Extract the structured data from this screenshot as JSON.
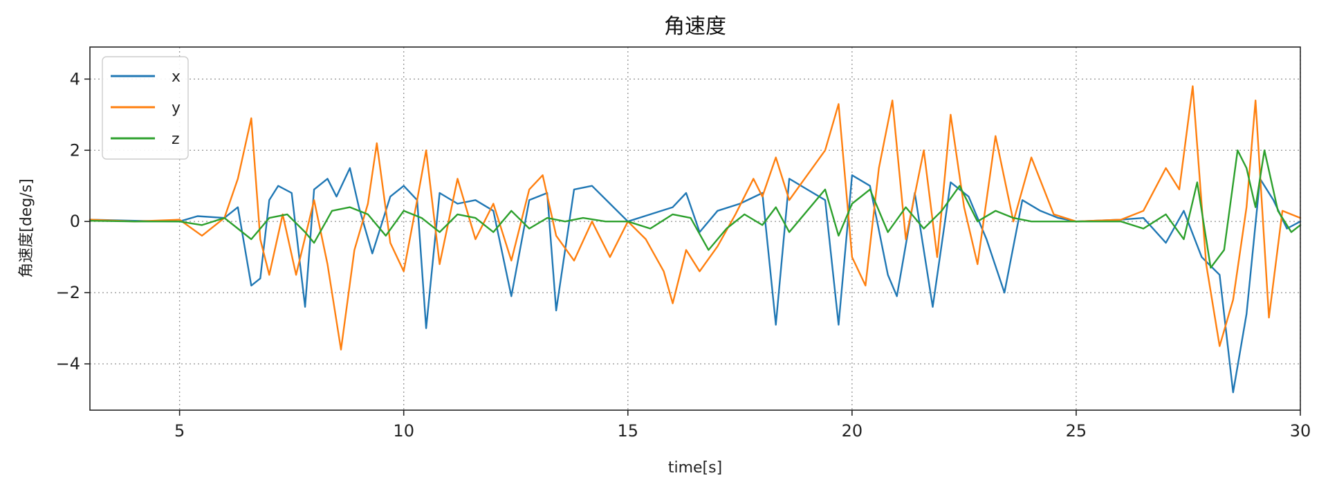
{
  "chart_data": {
    "type": "line",
    "title": "角速度",
    "xlabel": "time[s]",
    "ylabel": "角速度[deg/s]",
    "xlim": [
      3,
      30
    ],
    "ylim": [
      -5.3,
      4.9
    ],
    "x_ticks": [
      5,
      10,
      15,
      20,
      25,
      30
    ],
    "y_ticks": [
      4,
      2,
      0,
      -2,
      -4
    ],
    "y_tick_labels": [
      "4",
      "2",
      "0",
      "−2",
      "−4"
    ],
    "grid": true,
    "legend_position": "top-left",
    "series": [
      {
        "name": "x",
        "color": "#1f77b4",
        "points": [
          [
            3,
            0.05
          ],
          [
            4,
            0.02
          ],
          [
            5,
            0.0
          ],
          [
            5.4,
            0.15
          ],
          [
            6,
            0.1
          ],
          [
            6.3,
            0.4
          ],
          [
            6.6,
            -1.8
          ],
          [
            6.8,
            -1.6
          ],
          [
            7.0,
            0.6
          ],
          [
            7.2,
            1.0
          ],
          [
            7.5,
            0.8
          ],
          [
            7.8,
            -2.4
          ],
          [
            8.0,
            0.9
          ],
          [
            8.3,
            1.2
          ],
          [
            8.5,
            0.7
          ],
          [
            8.8,
            1.5
          ],
          [
            9.0,
            0.4
          ],
          [
            9.3,
            -0.9
          ],
          [
            9.7,
            0.7
          ],
          [
            10.0,
            1.0
          ],
          [
            10.3,
            0.6
          ],
          [
            10.5,
            -3.0
          ],
          [
            10.8,
            0.8
          ],
          [
            11.2,
            0.5
          ],
          [
            11.6,
            0.6
          ],
          [
            12.0,
            0.3
          ],
          [
            12.4,
            -2.1
          ],
          [
            12.8,
            0.6
          ],
          [
            13.2,
            0.8
          ],
          [
            13.4,
            -2.5
          ],
          [
            13.8,
            0.9
          ],
          [
            14.2,
            1.0
          ],
          [
            14.6,
            0.5
          ],
          [
            15.0,
            0.0
          ],
          [
            15.5,
            0.2
          ],
          [
            16.0,
            0.4
          ],
          [
            16.3,
            0.8
          ],
          [
            16.6,
            -0.3
          ],
          [
            17.0,
            0.3
          ],
          [
            17.5,
            0.5
          ],
          [
            18.0,
            0.8
          ],
          [
            18.3,
            -2.9
          ],
          [
            18.6,
            1.2
          ],
          [
            19.0,
            0.9
          ],
          [
            19.4,
            0.6
          ],
          [
            19.7,
            -2.9
          ],
          [
            20.0,
            1.3
          ],
          [
            20.4,
            1.0
          ],
          [
            20.8,
            -1.5
          ],
          [
            21.0,
            -2.1
          ],
          [
            21.4,
            0.8
          ],
          [
            21.8,
            -2.4
          ],
          [
            22.2,
            1.1
          ],
          [
            22.6,
            0.7
          ],
          [
            23.0,
            -0.5
          ],
          [
            23.4,
            -2.0
          ],
          [
            23.8,
            0.6
          ],
          [
            24.2,
            0.3
          ],
          [
            24.6,
            0.1
          ],
          [
            25.0,
            0.0
          ],
          [
            26.0,
            0.05
          ],
          [
            26.5,
            0.1
          ],
          [
            27.0,
            -0.6
          ],
          [
            27.4,
            0.3
          ],
          [
            27.8,
            -1.0
          ],
          [
            28.2,
            -1.5
          ],
          [
            28.5,
            -4.8
          ],
          [
            28.8,
            -2.6
          ],
          [
            29.1,
            1.2
          ],
          [
            29.4,
            0.6
          ],
          [
            29.7,
            -0.2
          ],
          [
            30.0,
            0.0
          ]
        ]
      },
      {
        "name": "y",
        "color": "#ff7f0e",
        "points": [
          [
            3,
            0.05
          ],
          [
            4,
            0.0
          ],
          [
            5,
            0.05
          ],
          [
            5.5,
            -0.4
          ],
          [
            6.0,
            0.1
          ],
          [
            6.3,
            1.2
          ],
          [
            6.6,
            2.9
          ],
          [
            6.8,
            -0.5
          ],
          [
            7.0,
            -1.5
          ],
          [
            7.3,
            0.2
          ],
          [
            7.6,
            -1.5
          ],
          [
            8.0,
            0.6
          ],
          [
            8.3,
            -1.2
          ],
          [
            8.6,
            -3.6
          ],
          [
            8.9,
            -0.8
          ],
          [
            9.2,
            0.5
          ],
          [
            9.4,
            2.2
          ],
          [
            9.7,
            -0.6
          ],
          [
            10.0,
            -1.4
          ],
          [
            10.3,
            0.6
          ],
          [
            10.5,
            2.0
          ],
          [
            10.8,
            -1.2
          ],
          [
            11.2,
            1.2
          ],
          [
            11.6,
            -0.5
          ],
          [
            12.0,
            0.5
          ],
          [
            12.4,
            -1.1
          ],
          [
            12.8,
            0.9
          ],
          [
            13.1,
            1.3
          ],
          [
            13.4,
            -0.4
          ],
          [
            13.8,
            -1.1
          ],
          [
            14.2,
            0.0
          ],
          [
            14.6,
            -1.0
          ],
          [
            15.0,
            0.0
          ],
          [
            15.4,
            -0.5
          ],
          [
            15.8,
            -1.4
          ],
          [
            16.0,
            -2.3
          ],
          [
            16.3,
            -0.8
          ],
          [
            16.6,
            -1.4
          ],
          [
            17.0,
            -0.7
          ],
          [
            17.4,
            0.2
          ],
          [
            17.8,
            1.2
          ],
          [
            18.0,
            0.7
          ],
          [
            18.3,
            1.8
          ],
          [
            18.6,
            0.6
          ],
          [
            19.0,
            1.3
          ],
          [
            19.4,
            2.0
          ],
          [
            19.7,
            3.3
          ],
          [
            20.0,
            -1.0
          ],
          [
            20.3,
            -1.8
          ],
          [
            20.6,
            1.5
          ],
          [
            20.9,
            3.4
          ],
          [
            21.2,
            -0.5
          ],
          [
            21.6,
            2.0
          ],
          [
            21.9,
            -1.0
          ],
          [
            22.2,
            3.0
          ],
          [
            22.5,
            0.4
          ],
          [
            22.8,
            -1.2
          ],
          [
            23.2,
            2.4
          ],
          [
            23.6,
            0.0
          ],
          [
            24.0,
            1.8
          ],
          [
            24.5,
            0.2
          ],
          [
            25.0,
            0.0
          ],
          [
            26.0,
            0.05
          ],
          [
            26.5,
            0.3
          ],
          [
            27.0,
            1.5
          ],
          [
            27.3,
            0.9
          ],
          [
            27.6,
            3.8
          ],
          [
            27.9,
            -1.2
          ],
          [
            28.2,
            -3.5
          ],
          [
            28.5,
            -2.2
          ],
          [
            28.8,
            0.4
          ],
          [
            29.0,
            3.4
          ],
          [
            29.3,
            -2.7
          ],
          [
            29.6,
            0.3
          ],
          [
            30.0,
            0.1
          ]
        ]
      },
      {
        "name": "z",
        "color": "#2ca02c",
        "points": [
          [
            3,
            0.02
          ],
          [
            4,
            0.0
          ],
          [
            5,
            0.0
          ],
          [
            5.5,
            -0.1
          ],
          [
            6.0,
            0.1
          ],
          [
            6.3,
            -0.2
          ],
          [
            6.6,
            -0.5
          ],
          [
            7.0,
            0.1
          ],
          [
            7.4,
            0.2
          ],
          [
            7.8,
            -0.3
          ],
          [
            8.0,
            -0.6
          ],
          [
            8.4,
            0.3
          ],
          [
            8.8,
            0.4
          ],
          [
            9.2,
            0.2
          ],
          [
            9.6,
            -0.4
          ],
          [
            10.0,
            0.3
          ],
          [
            10.4,
            0.1
          ],
          [
            10.8,
            -0.3
          ],
          [
            11.2,
            0.2
          ],
          [
            11.6,
            0.1
          ],
          [
            12.0,
            -0.3
          ],
          [
            12.4,
            0.3
          ],
          [
            12.8,
            -0.2
          ],
          [
            13.2,
            0.1
          ],
          [
            13.6,
            0.0
          ],
          [
            14.0,
            0.1
          ],
          [
            14.5,
            0.0
          ],
          [
            15.0,
            0.0
          ],
          [
            15.5,
            -0.2
          ],
          [
            16.0,
            0.2
          ],
          [
            16.4,
            0.1
          ],
          [
            16.8,
            -0.8
          ],
          [
            17.2,
            -0.2
          ],
          [
            17.6,
            0.2
          ],
          [
            18.0,
            -0.1
          ],
          [
            18.3,
            0.4
          ],
          [
            18.6,
            -0.3
          ],
          [
            19.0,
            0.3
          ],
          [
            19.4,
            0.9
          ],
          [
            19.7,
            -0.4
          ],
          [
            20.0,
            0.5
          ],
          [
            20.4,
            0.9
          ],
          [
            20.8,
            -0.3
          ],
          [
            21.2,
            0.4
          ],
          [
            21.6,
            -0.2
          ],
          [
            22.0,
            0.3
          ],
          [
            22.4,
            1.0
          ],
          [
            22.8,
            0.0
          ],
          [
            23.2,
            0.3
          ],
          [
            23.6,
            0.1
          ],
          [
            24.0,
            0.0
          ],
          [
            24.5,
            0.0
          ],
          [
            25.0,
            0.0
          ],
          [
            26.0,
            0.0
          ],
          [
            26.5,
            -0.2
          ],
          [
            27.0,
            0.2
          ],
          [
            27.4,
            -0.5
          ],
          [
            27.7,
            1.1
          ],
          [
            28.0,
            -1.3
          ],
          [
            28.3,
            -0.8
          ],
          [
            28.6,
            2.0
          ],
          [
            28.8,
            1.5
          ],
          [
            29.0,
            0.4
          ],
          [
            29.2,
            2.0
          ],
          [
            29.5,
            0.3
          ],
          [
            29.8,
            -0.3
          ],
          [
            30.0,
            -0.1
          ]
        ]
      }
    ]
  }
}
